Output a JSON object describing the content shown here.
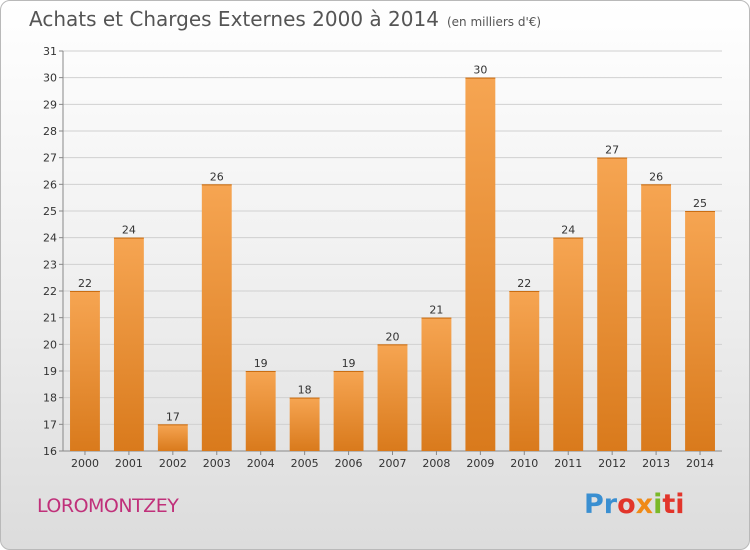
{
  "header": {
    "title": "Achats et Charges Externes 2000 à 2014",
    "unit": "(en milliers d'€)"
  },
  "commune": "LOROMONTZEY",
  "logo": {
    "text": "Proxiti",
    "parts": [
      "Pr",
      "o",
      "x",
      "i",
      "ti"
    ]
  },
  "colors": {
    "bar_light": "#f6a552",
    "bar_dark": "#d97a1c",
    "commune": "#c0307a",
    "grid": "#d0d0d0"
  },
  "chart_data": {
    "type": "bar",
    "title": "Achats et Charges Externes 2000 à 2014",
    "subtitle": "(en milliers d'€)",
    "xlabel": "",
    "ylabel": "",
    "categories": [
      "2000",
      "2001",
      "2002",
      "2003",
      "2004",
      "2005",
      "2006",
      "2007",
      "2008",
      "2009",
      "2010",
      "2011",
      "2012",
      "2013",
      "2014"
    ],
    "values": [
      22,
      24,
      17,
      26,
      19,
      18,
      19,
      20,
      21,
      30,
      22,
      24,
      27,
      26,
      25
    ],
    "ylim": [
      16,
      31
    ],
    "yticks": [
      16,
      17,
      18,
      19,
      20,
      21,
      22,
      23,
      24,
      25,
      26,
      27,
      28,
      29,
      30,
      31
    ],
    "grid": true,
    "legend": "none"
  }
}
